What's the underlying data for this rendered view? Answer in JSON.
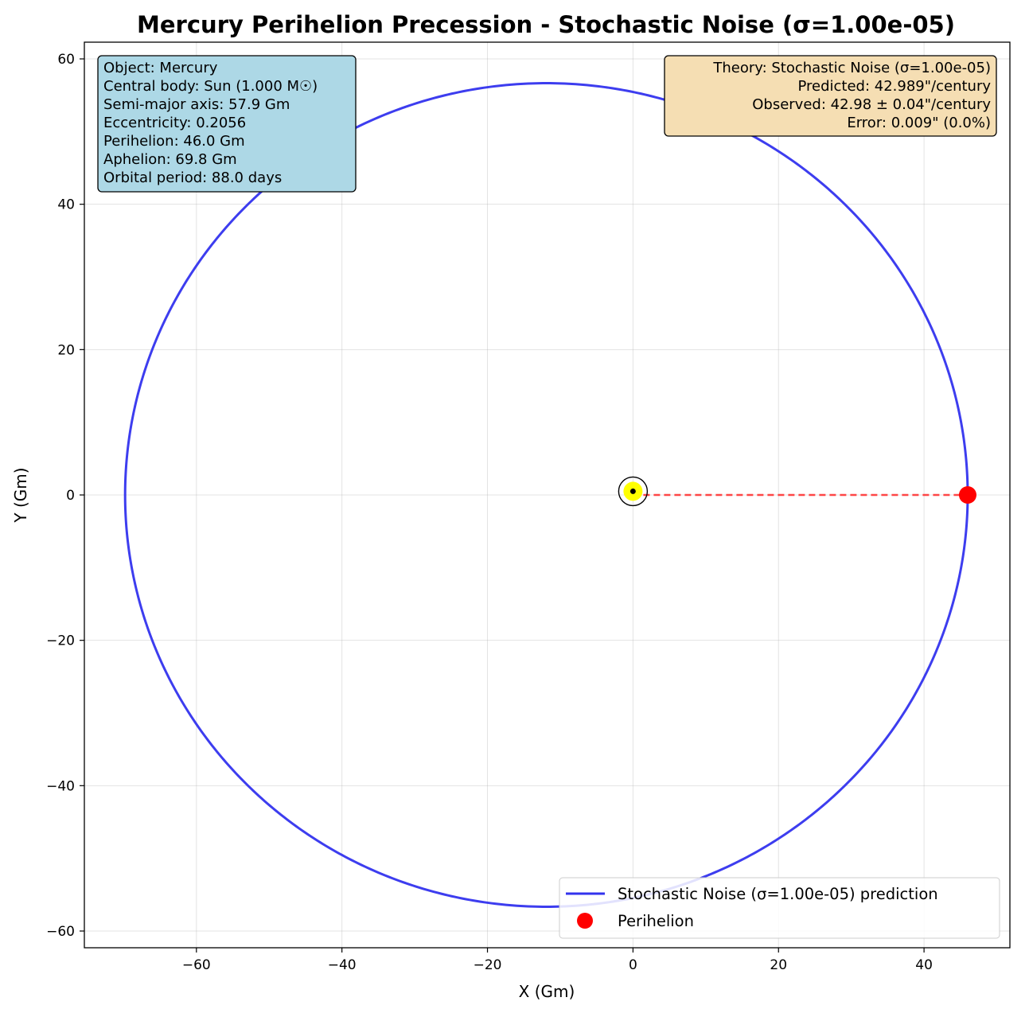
{
  "chart_data": {
    "type": "line",
    "title": "Mercury Perihelion Precession - Stochastic Noise (σ=1.00e-05)",
    "xlabel": "X (Gm)",
    "ylabel": "Y (Gm)",
    "xlim": [
      -75.4,
      51.8
    ],
    "ylim": [
      -62.3,
      62.3
    ],
    "xticks": [
      -60,
      -40,
      -20,
      0,
      20,
      40
    ],
    "yticks": [
      -60,
      -40,
      -20,
      0,
      20,
      40,
      60
    ],
    "xtick_labels": [
      "−60",
      "−40",
      "−20",
      "0",
      "20",
      "40"
    ],
    "ytick_labels": [
      "−60",
      "−40",
      "−20",
      "0",
      "20",
      "40",
      "60"
    ],
    "grid": true,
    "orbit": {
      "semi_major_axis": 57.9,
      "eccentricity": 0.2056,
      "center_x": -11.9,
      "semi_minor_axis": 56.66,
      "color": "#3333ee"
    },
    "central_body": {
      "x": 0,
      "y": 0.5,
      "color": "#ffff00"
    },
    "perihelion": {
      "x": 46.0,
      "y": 0,
      "color": "#ff0000"
    },
    "perihelion_line": {
      "from": [
        0,
        0
      ],
      "to": [
        46.0,
        0
      ],
      "color": "#ff3333",
      "style": "dashed"
    },
    "info_box": {
      "position": "top-left",
      "color": "#add8e6",
      "lines": [
        "Object: Mercury",
        "Central body: Sun (1.000 M☉)",
        "Semi-major axis: 57.9 Gm",
        "Eccentricity: 0.2056",
        "Perihelion: 46.0 Gm",
        "Aphelion: 69.8 Gm",
        "Orbital period: 88.0 days"
      ]
    },
    "theory_box": {
      "position": "top-right",
      "color": "#f5deb3",
      "lines": [
        "Theory: Stochastic Noise (σ=1.00e-05)",
        "Predicted: 42.989\"/century",
        "Observed: 42.98 ± 0.04\"/century",
        "Error: 0.009\" (0.0%)"
      ]
    },
    "legend": {
      "position": "lower-right",
      "entries": [
        {
          "label": "Stochastic Noise (σ=1.00e-05) prediction",
          "marker": "line",
          "color": "#3333ee"
        },
        {
          "label": "Perihelion",
          "marker": "dot",
          "color": "#ff0000"
        }
      ]
    }
  }
}
